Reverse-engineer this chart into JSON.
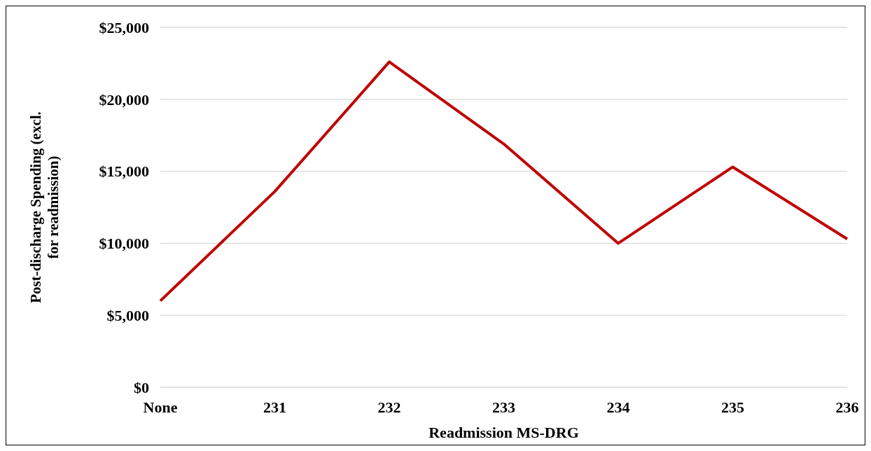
{
  "chart_data": {
    "type": "line",
    "xlabel": "Readmission MS-DRG",
    "ylabel": "Post-discharge Spending (excl. for readmission)",
    "categories": [
      "None",
      "231",
      "232",
      "233",
      "234",
      "235",
      "236"
    ],
    "series": [
      {
        "color": "#c00000",
        "values": [
          6000,
          13600,
          22600,
          16900,
          10000,
          15300,
          10300
        ]
      }
    ],
    "ylim": [
      0,
      25000
    ],
    "yticks": [
      {
        "value": 0,
        "label": "$0"
      },
      {
        "value": 5000,
        "label": "$5,000"
      },
      {
        "value": 10000,
        "label": "$10,000"
      },
      {
        "value": 15000,
        "label": "$15,000"
      },
      {
        "value": 20000,
        "label": "$20,000"
      },
      {
        "value": 25000,
        "label": "$25,000"
      }
    ],
    "grid": "y",
    "legend": false,
    "marker": "none",
    "line_style": "solid"
  }
}
